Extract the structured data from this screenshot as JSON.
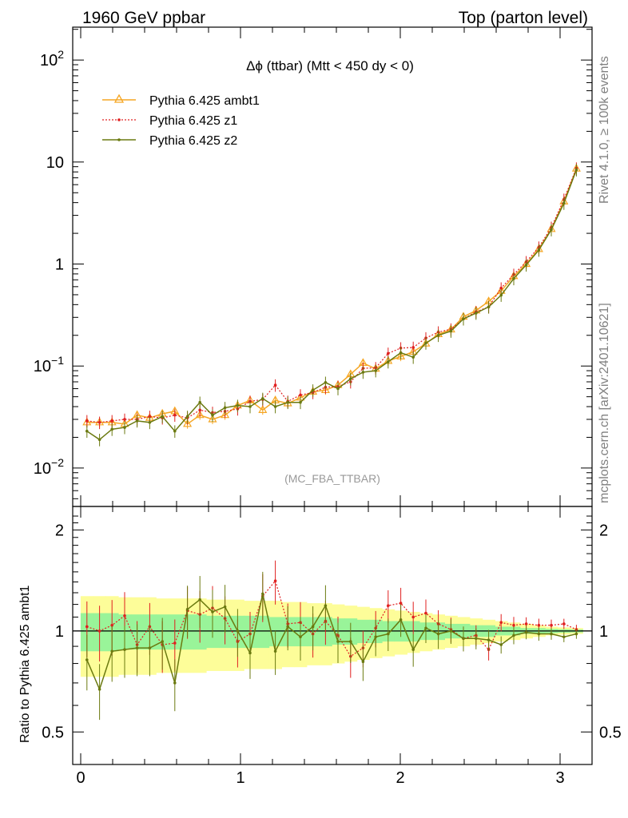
{
  "header": {
    "left": "1960 GeV ppbar",
    "right": "Top (parton level)"
  },
  "side_labels": {
    "rivet": "Rivet 4.1.0, ≥ 100k events",
    "mcplots": "mcplots.cern.ch [arXiv:2401.10621]"
  },
  "main": {
    "title": "Δϕ (ttbar) (Mtt < 450 dy < 0)",
    "analysis_tag": "(MC_FBA_TTBAR)",
    "y_ticks": [
      {
        "value": 0.01,
        "base": "10",
        "exp": "−2"
      },
      {
        "value": 0.1,
        "base": "10",
        "exp": "−1"
      },
      {
        "value": 1,
        "base": "1",
        "exp": ""
      },
      {
        "value": 10,
        "base": "10",
        "exp": ""
      },
      {
        "value": 100,
        "base": "10",
        "exp": "2"
      }
    ]
  },
  "ratio": {
    "ylabel": "Ratio to Pythia 6.425 ambt1",
    "y_ticks": [
      {
        "value": 0.5,
        "label": "0.5"
      },
      {
        "value": 1,
        "label": "1"
      },
      {
        "value": 2,
        "label": "2"
      }
    ]
  },
  "x_ticks": [
    {
      "value": 0,
      "label": "0"
    },
    {
      "value": 1,
      "label": "1"
    },
    {
      "value": 2,
      "label": "2"
    },
    {
      "value": 3,
      "label": "3"
    }
  ],
  "colors": {
    "ambt1": "#f5a623",
    "z1": "#e02020",
    "z2": "#6b7a10",
    "band_yellow": "#fdfd99",
    "band_green": "#99f499"
  },
  "chart_data": {
    "type": "line",
    "xlim": [
      -0.05,
      3.2
    ],
    "main_ylim": [
      0.0042,
      210
    ],
    "ratio_ylim": [
      0.4,
      2.35
    ],
    "x": [
      0.039,
      0.118,
      0.196,
      0.275,
      0.353,
      0.432,
      0.511,
      0.589,
      0.668,
      0.746,
      0.825,
      0.903,
      0.982,
      1.06,
      1.139,
      1.218,
      1.296,
      1.375,
      1.453,
      1.532,
      1.61,
      1.689,
      1.767,
      1.846,
      1.924,
      2.003,
      2.081,
      2.16,
      2.238,
      2.317,
      2.395,
      2.474,
      2.553,
      2.631,
      2.71,
      2.788,
      2.867,
      2.945,
      3.024,
      3.102
    ],
    "legend": [
      "Pythia 6.425 ambt1",
      "Pythia 6.425 z1",
      "Pythia 6.425 z2"
    ],
    "series": [
      {
        "name": "Pythia 6.425 ambt1",
        "values": [
          0.028,
          0.028,
          0.028,
          0.027,
          0.033,
          0.031,
          0.034,
          0.036,
          0.027,
          0.033,
          0.03,
          0.033,
          0.041,
          0.046,
          0.037,
          0.046,
          0.043,
          0.049,
          0.056,
          0.058,
          0.065,
          0.083,
          0.107,
          0.094,
          0.112,
          0.124,
          0.138,
          0.166,
          0.205,
          0.228,
          0.304,
          0.35,
          0.43,
          0.545,
          0.76,
          1.0,
          1.4,
          2.2,
          4.1,
          8.6
        ],
        "ratio": [
          1,
          1,
          1,
          1,
          1,
          1,
          1,
          1,
          1,
          1,
          1,
          1,
          1,
          1,
          1,
          1,
          1,
          1,
          1,
          1,
          1,
          1,
          1,
          1,
          1,
          1,
          1,
          1,
          1,
          1,
          1,
          1,
          1,
          1,
          1,
          1,
          1,
          1,
          1,
          1
        ],
        "band_yellow": [
          0.27,
          0.27,
          0.27,
          0.26,
          0.26,
          0.26,
          0.25,
          0.25,
          0.25,
          0.25,
          0.24,
          0.24,
          0.24,
          0.23,
          0.23,
          0.23,
          0.22,
          0.22,
          0.21,
          0.21,
          0.2,
          0.19,
          0.18,
          0.17,
          0.16,
          0.15,
          0.14,
          0.13,
          0.12,
          0.11,
          0.1,
          0.09,
          0.08,
          0.07,
          0.06,
          0.05,
          0.04,
          0.03,
          0.025,
          0.02
        ],
        "band_green": [
          0.13,
          0.13,
          0.13,
          0.12,
          0.12,
          0.12,
          0.12,
          0.12,
          0.12,
          0.12,
          0.11,
          0.11,
          0.11,
          0.11,
          0.11,
          0.1,
          0.1,
          0.1,
          0.1,
          0.1,
          0.09,
          0.09,
          0.08,
          0.08,
          0.07,
          0.07,
          0.07,
          0.06,
          0.06,
          0.05,
          0.05,
          0.04,
          0.04,
          0.03,
          0.03,
          0.02,
          0.02,
          0.015,
          0.012,
          0.01
        ]
      },
      {
        "name": "Pythia 6.425 z1",
        "values": [
          0.029,
          0.028,
          0.029,
          0.03,
          0.03,
          0.032,
          0.031,
          0.033,
          0.031,
          0.037,
          0.035,
          0.036,
          0.038,
          0.045,
          0.047,
          0.065,
          0.045,
          0.052,
          0.055,
          0.062,
          0.063,
          0.07,
          0.095,
          0.096,
          0.133,
          0.15,
          0.152,
          0.188,
          0.215,
          0.23,
          0.29,
          0.34,
          0.38,
          0.58,
          0.79,
          1.05,
          1.46,
          2.28,
          4.3,
          8.7
        ],
        "ratio": [
          1.03,
          1.0,
          1.04,
          1.11,
          0.91,
          1.03,
          0.91,
          0.92,
          1.15,
          1.12,
          1.17,
          1.09,
          0.93,
          0.98,
          1.27,
          1.41,
          1.05,
          1.06,
          0.98,
          1.07,
          0.97,
          0.84,
          0.89,
          1.02,
          1.19,
          1.21,
          1.1,
          1.13,
          1.05,
          1.01,
          0.95,
          0.97,
          0.88,
          1.06,
          1.04,
          1.05,
          1.04,
          1.04,
          1.05,
          1.01
        ]
      },
      {
        "name": "Pythia 6.425 z2",
        "values": [
          0.023,
          0.019,
          0.024,
          0.025,
          0.029,
          0.028,
          0.032,
          0.023,
          0.032,
          0.044,
          0.033,
          0.039,
          0.041,
          0.04,
          0.048,
          0.04,
          0.044,
          0.044,
          0.058,
          0.069,
          0.06,
          0.075,
          0.087,
          0.09,
          0.11,
          0.135,
          0.122,
          0.168,
          0.2,
          0.22,
          0.29,
          0.33,
          0.38,
          0.495,
          0.72,
          0.98,
          1.37,
          2.17,
          3.95,
          8.4
        ],
        "ratio": [
          0.82,
          0.67,
          0.87,
          0.88,
          0.89,
          0.89,
          0.93,
          0.7,
          1.16,
          1.24,
          1.14,
          1.18,
          1.0,
          0.86,
          1.29,
          0.87,
          1.03,
          0.96,
          1.03,
          1.19,
          0.93,
          0.93,
          0.81,
          0.96,
          0.98,
          1.08,
          0.88,
          1.02,
          0.98,
          1.0,
          0.95,
          0.95,
          0.94,
          0.91,
          0.97,
          0.99,
          0.98,
          0.98,
          0.96,
          0.98
        ]
      }
    ]
  }
}
